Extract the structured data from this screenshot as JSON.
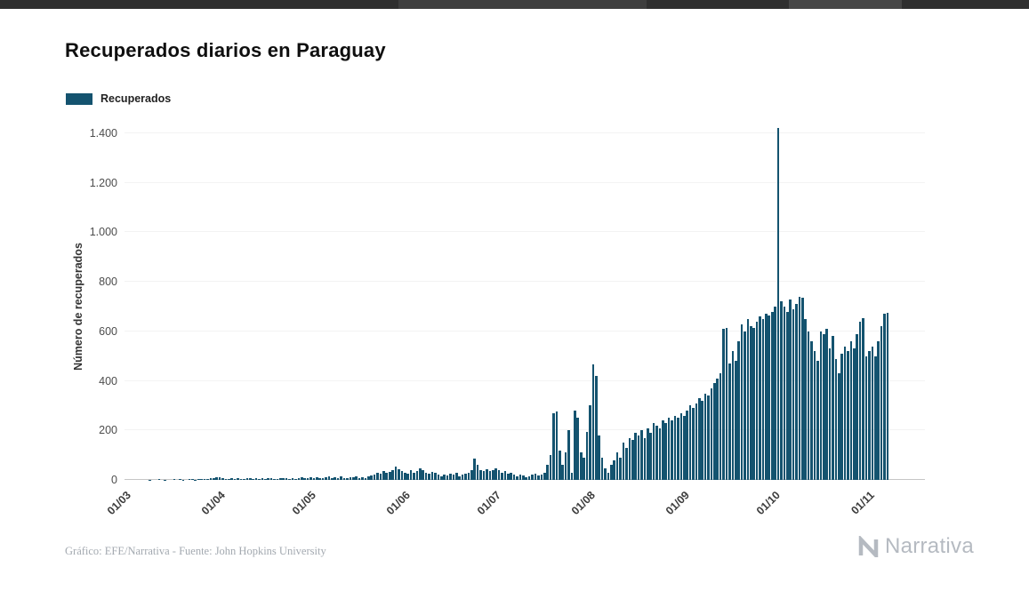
{
  "header": {
    "title": "Recuperados diarios en Paraguay"
  },
  "legend": {
    "label": "Recuperados"
  },
  "chart_data": {
    "type": "bar",
    "title": "Recuperados diarios en Paraguay",
    "xlabel": "",
    "ylabel": "Número de recuperados",
    "ylim": [
      0,
      1400
    ],
    "grid": true,
    "legend_position": "top-left",
    "bar_color": "#14536F",
    "y_ticks": [
      "0",
      "200",
      "400",
      "600",
      "800",
      "1.000",
      "1.200",
      "1.400"
    ],
    "y_tick_values": [
      0,
      200,
      400,
      600,
      800,
      1000,
      1200,
      1400
    ],
    "x_tick_labels": [
      "01/03",
      "01/04",
      "01/05",
      "01/06",
      "01/07",
      "01/08",
      "01/09",
      "01/10",
      "01/11"
    ],
    "x_tick_indices": [
      0,
      31,
      61,
      92,
      122,
      153,
      184,
      214,
      245
    ],
    "series": [
      {
        "name": "Recuperados",
        "values": [
          0,
          0,
          0,
          0,
          0,
          0,
          0,
          0,
          1,
          0,
          0,
          2,
          0,
          1,
          0,
          0,
          3,
          0,
          2,
          1,
          0,
          2,
          4,
          1,
          3,
          2,
          5,
          3,
          6,
          8,
          12,
          10,
          8,
          5,
          3,
          6,
          4,
          7,
          5,
          3,
          8,
          6,
          4,
          9,
          5,
          7,
          4,
          6,
          8,
          5,
          3,
          7,
          9,
          6,
          4,
          8,
          5,
          7,
          10,
          6,
          8,
          10,
          7,
          12,
          8,
          6,
          10,
          14,
          8,
          11,
          7,
          13,
          9,
          8,
          12,
          10,
          15,
          9,
          11,
          8,
          14,
          18,
          22,
          30,
          25,
          35,
          28,
          32,
          38,
          55,
          42,
          35,
          30,
          25,
          40,
          28,
          35,
          45,
          38,
          30,
          25,
          32,
          28,
          20,
          15,
          22,
          18,
          25,
          20,
          28,
          15,
          20,
          25,
          30,
          40,
          85,
          60,
          40,
          35,
          42,
          35,
          38,
          45,
          38,
          30,
          35,
          25,
          28,
          20,
          15,
          22,
          18,
          12,
          15,
          20,
          25,
          18,
          22,
          30,
          60,
          100,
          270,
          275,
          120,
          60,
          110,
          200,
          30,
          280,
          250,
          110,
          90,
          195,
          300,
          465,
          420,
          180,
          90,
          45,
          30,
          60,
          80,
          110,
          90,
          150,
          130,
          170,
          160,
          190,
          180,
          200,
          170,
          210,
          190,
          230,
          220,
          210,
          240,
          230,
          250,
          240,
          260,
          250,
          270,
          260,
          280,
          300,
          290,
          310,
          330,
          320,
          350,
          340,
          370,
          390,
          410,
          430,
          610,
          615,
          470,
          520,
          480,
          560,
          630,
          600,
          650,
          620,
          615,
          640,
          660,
          650,
          670,
          665,
          680,
          700,
          1420,
          720,
          700,
          680,
          730,
          690,
          710,
          740,
          735,
          650,
          600,
          560,
          520,
          480,
          600,
          590,
          610,
          530,
          580,
          490,
          430,
          510,
          540,
          520,
          560,
          530,
          590,
          640,
          655,
          500,
          520,
          540,
          500,
          560,
          620,
          670,
          675
        ]
      }
    ]
  },
  "footer": {
    "credit": "Gráfico: EFE/Narrativa - Fuente: John Hopkins University"
  },
  "branding": {
    "logo_text": "Narrativa"
  }
}
